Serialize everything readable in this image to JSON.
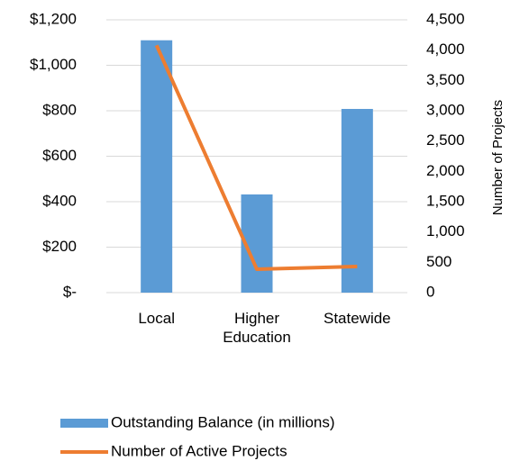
{
  "chart_data": {
    "type": "bar_line",
    "categories": [
      "Local",
      "Higher Education",
      "Statewide"
    ],
    "series": [
      {
        "name": "Outstanding Balance (in millions)",
        "type": "bar",
        "color": "#5b9bd5",
        "values": [
          1110,
          432,
          808
        ]
      },
      {
        "name": "Number of Active Projects",
        "type": "line",
        "color": "#ed7d31",
        "axis": "y2",
        "values": [
          4080,
          386,
          431
        ]
      }
    ],
    "ylim": [
      0,
      1200
    ],
    "yticks": [
      {
        "value": 0,
        "label": "$-"
      },
      {
        "value": 200,
        "label": "$200"
      },
      {
        "value": 400,
        "label": "$400"
      },
      {
        "value": 600,
        "label": "$600"
      },
      {
        "value": 800,
        "label": "$800"
      },
      {
        "value": 1000,
        "label": "$1,000"
      },
      {
        "value": 1200,
        "label": "$1,200"
      }
    ],
    "y2lim": [
      0,
      4500
    ],
    "y2ticks": [
      0,
      500,
      {
        "value": 1000,
        "label": "1,000"
      },
      {
        "value": 1500,
        "label": "1,500"
      },
      {
        "value": 2000,
        "label": "2,000"
      },
      {
        "value": 2500,
        "label": "2,500"
      },
      {
        "value": 3000,
        "label": "3,000"
      },
      {
        "value": 3500,
        "label": "3,500"
      },
      {
        "value": 4000,
        "label": "4,000"
      },
      {
        "value": 4500,
        "label": "4,500"
      }
    ],
    "y2_label": "Number of Projects",
    "grid": true,
    "legend": "bottom"
  }
}
